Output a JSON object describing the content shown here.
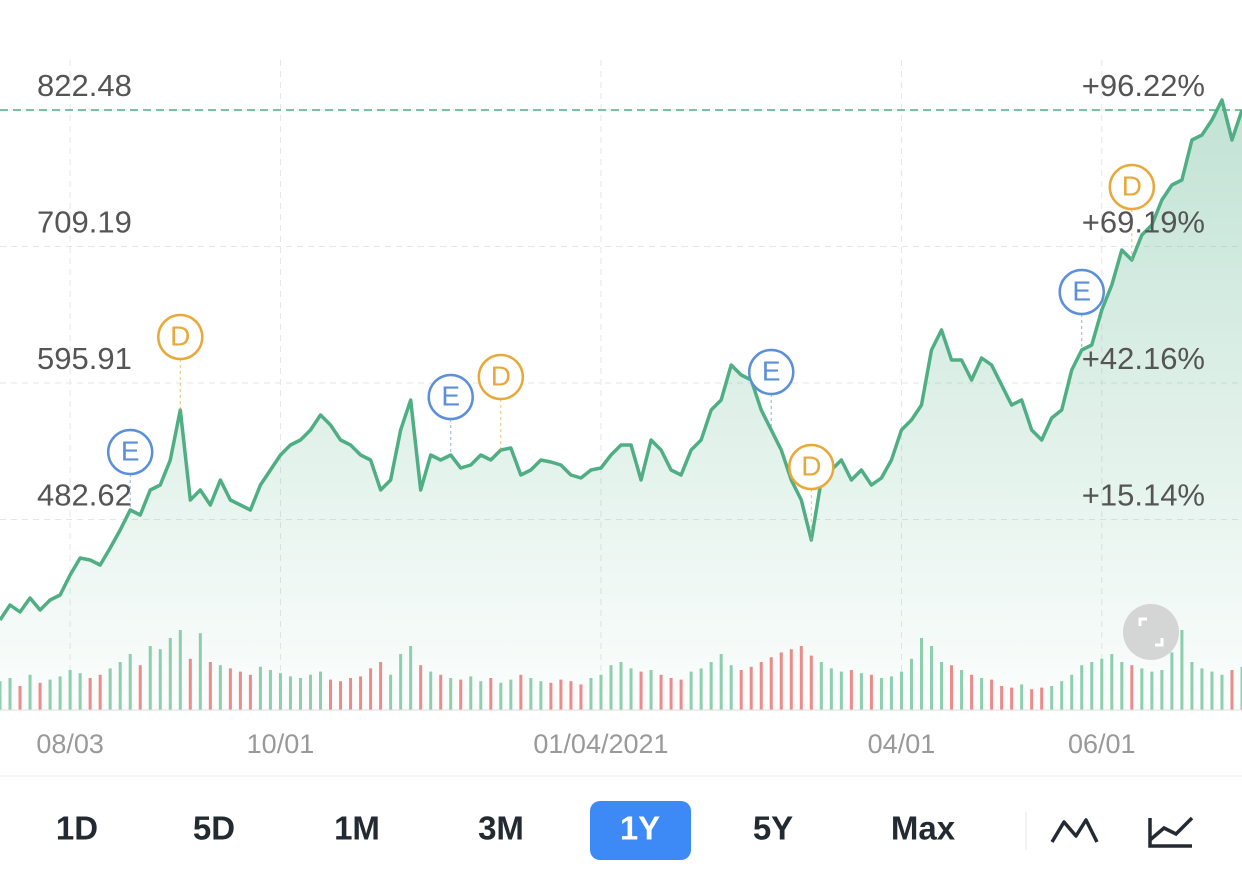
{
  "chart_data": {
    "type": "line",
    "series": [
      {
        "name": "Price",
        "color": "#4fae84",
        "values": [
          399.18,
          411.63,
          405.82,
          417.44,
          407.48,
          415.78,
          419.93,
          436.53,
          450.64,
          448.98,
          444.83,
          458.94,
          473.88,
          490.48,
          486.33,
          507.08,
          511.23,
          531.98,
          573.48,
          498.78,
          507.08,
          494.63,
          515.38,
          498.78,
          494.63,
          490.48,
          511.23,
          523.68,
          536.13,
          544.43,
          548.58,
          556.88,
          569.33,
          561.03,
          548.58,
          544.43,
          536.13,
          531.98,
          507.08,
          515.38,
          556.88,
          581.78,
          507.08,
          536.13,
          531.98,
          536.13,
          525.34,
          527.83,
          536.13,
          531.98,
          540.28,
          541.94,
          519.53,
          523.68,
          531.98,
          530.32,
          527.83,
          519.53,
          517.04,
          523.68,
          525.34,
          536.13,
          544.43,
          544.43,
          515.38,
          548.58,
          540.28,
          523.68,
          519.53,
          540.28,
          548.58,
          573.48,
          581.78,
          610.83,
          602.53,
          598.38,
          573.48,
          556.88,
          540.28,
          515.38,
          498.78,
          465.58,
          515.38,
          523.68,
          531.98,
          515.38,
          523.68,
          511.23,
          517.04,
          531.98,
          556.88,
          565.18,
          577.63,
          623.28,
          639.88,
          614.98,
          614.98,
          598.38,
          616.64,
          610.83,
          594.23,
          577.63,
          581.78,
          556.88,
          548.58,
          566.84,
          573.48,
          606.68,
          623.28,
          627.43,
          656.48,
          677.23,
          706.28,
          697.98,
          718.73,
          727.03,
          747.78,
          760.23,
          764.38,
          797.58,
          801.73,
          814.18,
          830.78,
          797.58,
          822.48
        ]
      }
    ],
    "volume": [
      18,
      20,
      15,
      22,
      17,
      19,
      21,
      25,
      23,
      20,
      22,
      26,
      30,
      35,
      28,
      40,
      38,
      45,
      50,
      32,
      48,
      30,
      28,
      26,
      24,
      22,
      27,
      25,
      23,
      21,
      20,
      22,
      24,
      19,
      18,
      20,
      21,
      26,
      30,
      22,
      35,
      40,
      28,
      24,
      22,
      20,
      19,
      21,
      18,
      20,
      17,
      19,
      22,
      20,
      18,
      17,
      19,
      18,
      16,
      20,
      22,
      28,
      30,
      26,
      24,
      25,
      22,
      20,
      19,
      24,
      26,
      30,
      35,
      28,
      25,
      27,
      30,
      33,
      36,
      38,
      40,
      34,
      30,
      26,
      24,
      25,
      23,
      22,
      20,
      21,
      24,
      32,
      45,
      40,
      30,
      28,
      25,
      22,
      20,
      19,
      15,
      14,
      16,
      13,
      14,
      15,
      18,
      22,
      28,
      30,
      32,
      35,
      30,
      28,
      26,
      24,
      25,
      36,
      50,
      30,
      26,
      24,
      22,
      25,
      27
    ],
    "xlim": [
      0,
      124
    ],
    "xticks": [
      {
        "value": 7,
        "label": "08/03"
      },
      {
        "value": 28,
        "label": "10/01"
      },
      {
        "value": 60,
        "label": "01/04/2021"
      },
      {
        "value": 90,
        "label": "04/01"
      },
      {
        "value": 110,
        "label": "06/01"
      }
    ],
    "ylim": [
      324.48,
      913.78
    ],
    "yticks": [
      482.62,
      595.91,
      709.19,
      822.48
    ],
    "y2lim": [
      -22.59,
      118.0
    ],
    "y2ticks": [
      {
        "value": 15.14,
        "label": "+15.14%"
      },
      {
        "value": 42.16,
        "label": "+42.16%"
      },
      {
        "value": 69.19,
        "label": "+69.19%"
      },
      {
        "value": 96.22,
        "label": "+96.22%"
      }
    ],
    "price_line": 822.48,
    "grid": true,
    "events": [
      {
        "label": "E",
        "index": 13,
        "color": "#5b8fd9"
      },
      {
        "label": "D",
        "index": 18,
        "color": "#e8a93a"
      },
      {
        "label": "E",
        "index": 45,
        "color": "#5b8fd9"
      },
      {
        "label": "D",
        "index": 50,
        "color": "#e8a93a"
      },
      {
        "label": "E",
        "index": 77,
        "color": "#5b8fd9"
      },
      {
        "label": "D",
        "index": 81,
        "color": "#e8a93a"
      },
      {
        "label": "E",
        "index": 108,
        "color": "#5b8fd9"
      },
      {
        "label": "D",
        "index": 113,
        "color": "#e8a93a"
      }
    ]
  },
  "ranges": {
    "items": [
      "1D",
      "5D",
      "1M",
      "3M",
      "1Y",
      "5Y",
      "Max"
    ],
    "selected": "1Y"
  }
}
